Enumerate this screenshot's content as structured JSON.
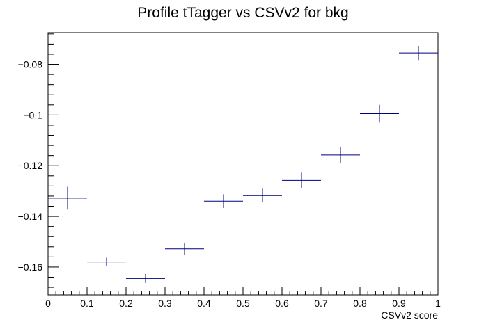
{
  "chart_data": {
    "type": "scatter",
    "title": "Profile tTagger vs CSVv2 for bkg",
    "xlabel": "CSVv2 score",
    "ylabel": "",
    "xlim": [
      0,
      1
    ],
    "ylim": [
      -0.171,
      -0.0675
    ],
    "grid": false,
    "legend": "none",
    "x_tick_labels": [
      "0",
      "0.1",
      "0.2",
      "0.3",
      "0.4",
      "0.5",
      "0.6",
      "0.7",
      "0.8",
      "0.9",
      "1"
    ],
    "y_tick_labels": [
      "−0.16",
      "−0.14",
      "−0.12",
      "−0.1",
      "−0.08"
    ],
    "series": [
      {
        "color": "#00007f",
        "points": [
          {
            "x": 0.05,
            "y": -0.1328,
            "xerr": 0.05,
            "yerr": 0.0045
          },
          {
            "x": 0.15,
            "y": -0.158,
            "xerr": 0.05,
            "yerr": 0.0017
          },
          {
            "x": 0.25,
            "y": -0.1645,
            "xerr": 0.05,
            "yerr": 0.0018
          },
          {
            "x": 0.35,
            "y": -0.1528,
            "xerr": 0.05,
            "yerr": 0.0023
          },
          {
            "x": 0.45,
            "y": -0.134,
            "xerr": 0.05,
            "yerr": 0.0027
          },
          {
            "x": 0.55,
            "y": -0.1318,
            "xerr": 0.05,
            "yerr": 0.0027
          },
          {
            "x": 0.65,
            "y": -0.1258,
            "xerr": 0.05,
            "yerr": 0.003
          },
          {
            "x": 0.75,
            "y": -0.1158,
            "xerr": 0.05,
            "yerr": 0.0033
          },
          {
            "x": 0.85,
            "y": -0.0995,
            "xerr": 0.05,
            "yerr": 0.0035
          },
          {
            "x": 0.95,
            "y": -0.0755,
            "xerr": 0.05,
            "yerr": 0.0028
          }
        ]
      }
    ]
  }
}
